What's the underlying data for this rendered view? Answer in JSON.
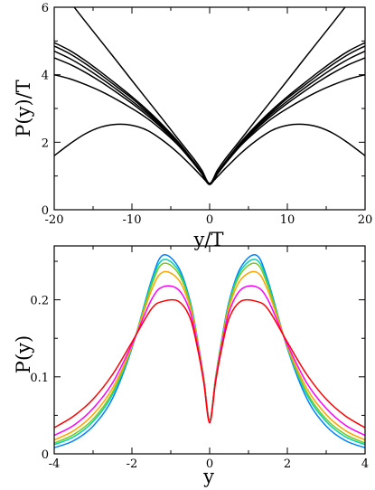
{
  "chart_data": [
    {
      "type": "line",
      "xlabel": "y/T",
      "ylabel": "P(y)/T",
      "xlim": [
        -20,
        20
      ],
      "ylim": [
        0,
        6
      ],
      "xticks": [
        -20,
        -10,
        0,
        10,
        20
      ],
      "xtick_labels": [
        "-20",
        "-10",
        "0",
        "10",
        "20"
      ],
      "yticks": [
        0,
        2,
        4,
        6
      ],
      "ytick_labels": [
        "0",
        "2",
        "4",
        "6"
      ],
      "grid": false,
      "legend": "none",
      "series": [
        {
          "color": "#000000",
          "x": [
            -20,
            -18,
            -16,
            -14,
            -12,
            -10,
            -8,
            -6,
            -4,
            -2,
            -1,
            0,
            1,
            2,
            4,
            6,
            8,
            10,
            12,
            14,
            16,
            18,
            20
          ],
          "values": [
            6.75,
            6.17,
            5.58,
            5.0,
            4.42,
            3.83,
            3.25,
            2.67,
            2.08,
            1.5,
            1.17,
            0.78,
            1.17,
            1.5,
            2.08,
            2.67,
            3.25,
            3.83,
            4.42,
            5.0,
            5.58,
            6.17,
            6.75
          ]
        },
        {
          "color": "#000000",
          "x": [
            -20,
            -18,
            -16,
            -14,
            -12,
            -10,
            -8,
            -6,
            -4,
            -2,
            -1,
            0,
            1,
            2,
            4,
            6,
            8,
            10,
            12,
            14,
            16,
            18,
            20
          ],
          "values": [
            4.95,
            4.72,
            4.42,
            4.08,
            3.72,
            3.35,
            2.95,
            2.5,
            2.0,
            1.42,
            1.1,
            0.76,
            1.1,
            1.42,
            2.0,
            2.5,
            2.95,
            3.35,
            3.72,
            4.08,
            4.42,
            4.72,
            4.95
          ]
        },
        {
          "color": "#000000",
          "x": [
            -20,
            -18,
            -16,
            -14,
            -12,
            -10,
            -8,
            -6,
            -4,
            -2,
            -1,
            0,
            1,
            2,
            4,
            6,
            8,
            10,
            12,
            14,
            16,
            18,
            20
          ],
          "values": [
            4.85,
            4.62,
            4.33,
            4.0,
            3.65,
            3.3,
            2.9,
            2.47,
            1.98,
            1.4,
            1.09,
            0.76,
            1.09,
            1.4,
            1.98,
            2.47,
            2.9,
            3.3,
            3.65,
            4.0,
            4.33,
            4.62,
            4.85
          ]
        },
        {
          "color": "#000000",
          "x": [
            -20,
            -18,
            -16,
            -14,
            -12,
            -10,
            -8,
            -6,
            -4,
            -2,
            -1,
            0,
            1,
            2,
            4,
            6,
            8,
            10,
            12,
            14,
            16,
            18,
            20
          ],
          "values": [
            4.7,
            4.48,
            4.21,
            3.9,
            3.57,
            3.22,
            2.85,
            2.43,
            1.96,
            1.39,
            1.08,
            0.75,
            1.08,
            1.39,
            1.96,
            2.43,
            2.85,
            3.22,
            3.57,
            3.9,
            4.21,
            4.48,
            4.7
          ]
        },
        {
          "color": "#000000",
          "x": [
            -20,
            -18,
            -16,
            -14,
            -12,
            -10,
            -8,
            -6,
            -4,
            -2,
            -1,
            0,
            1,
            2,
            4,
            6,
            8,
            10,
            12,
            14,
            16,
            18,
            20
          ],
          "values": [
            4.5,
            4.31,
            4.07,
            3.79,
            3.48,
            3.15,
            2.79,
            2.39,
            1.93,
            1.37,
            1.07,
            0.75,
            1.07,
            1.37,
            1.93,
            2.39,
            2.79,
            3.15,
            3.48,
            3.79,
            4.07,
            4.31,
            4.5
          ]
        },
        {
          "color": "#000000",
          "x": [
            -20,
            -18,
            -16,
            -14,
            -12,
            -10,
            -8,
            -6,
            -4,
            -2,
            -1,
            0,
            1,
            2,
            4,
            6,
            8,
            10,
            12,
            14,
            16,
            18,
            20
          ],
          "values": [
            4.0,
            3.88,
            3.71,
            3.51,
            3.27,
            3.0,
            2.7,
            2.33,
            1.9,
            1.36,
            1.06,
            0.75,
            1.06,
            1.36,
            1.9,
            2.33,
            2.7,
            3.0,
            3.27,
            3.51,
            3.71,
            3.88,
            4.0
          ]
        },
        {
          "color": "#000000",
          "x": [
            -20,
            -18,
            -16,
            -14,
            -12,
            -10,
            -8,
            -6,
            -4,
            -2,
            -1,
            0,
            1,
            2,
            4,
            6,
            8,
            10,
            12,
            14,
            16,
            18,
            20
          ],
          "values": [
            1.6,
            1.95,
            2.25,
            2.45,
            2.53,
            2.5,
            2.35,
            2.05,
            1.67,
            1.22,
            0.98,
            0.78,
            0.98,
            1.22,
            1.67,
            2.05,
            2.35,
            2.5,
            2.53,
            2.45,
            2.25,
            1.95,
            1.6
          ]
        }
      ]
    },
    {
      "type": "line",
      "xlabel": "y",
      "ylabel": "P(y)",
      "xlim": [
        -4,
        4
      ],
      "ylim": [
        0,
        0.27
      ],
      "xticks": [
        -4,
        -2,
        0,
        2,
        4
      ],
      "xtick_labels": [
        "-4",
        "-2",
        "0",
        "2",
        "4"
      ],
      "yticks": [
        0,
        0.1,
        0.2
      ],
      "ytick_labels": [
        "0",
        "0.1",
        "0.2"
      ],
      "grid": false,
      "legend": "none",
      "series": [
        {
          "color": "#0080ff",
          "x": [
            -4,
            -3.5,
            -3,
            -2.5,
            -2,
            -1.5,
            -1.2,
            -0.8,
            -0.5,
            -0.3,
            -0.15,
            0,
            0.15,
            0.3,
            0.5,
            0.8,
            1.2,
            1.5,
            2,
            2.5,
            3,
            3.5,
            4
          ],
          "values": [
            0.008,
            0.017,
            0.036,
            0.072,
            0.137,
            0.225,
            0.258,
            0.242,
            0.198,
            0.145,
            0.098,
            0.044,
            0.098,
            0.145,
            0.198,
            0.242,
            0.258,
            0.225,
            0.137,
            0.072,
            0.036,
            0.017,
            0.008
          ]
        },
        {
          "color": "#00d4b0",
          "x": [
            -4,
            -3.5,
            -3,
            -2.5,
            -2,
            -1.5,
            -1.2,
            -0.8,
            -0.5,
            -0.3,
            -0.15,
            0,
            0.15,
            0.3,
            0.5,
            0.8,
            1.2,
            1.5,
            2,
            2.5,
            3,
            3.5,
            4
          ],
          "values": [
            0.012,
            0.022,
            0.042,
            0.077,
            0.138,
            0.222,
            0.252,
            0.238,
            0.196,
            0.144,
            0.098,
            0.044,
            0.098,
            0.144,
            0.196,
            0.238,
            0.252,
            0.222,
            0.138,
            0.077,
            0.042,
            0.022,
            0.012
          ]
        },
        {
          "color": "#7ac81e",
          "x": [
            -4,
            -3.5,
            -3,
            -2.5,
            -2,
            -1.5,
            -1.2,
            -0.8,
            -0.5,
            -0.3,
            -0.15,
            0,
            0.15,
            0.3,
            0.5,
            0.8,
            1.2,
            1.5,
            2,
            2.5,
            3,
            3.5,
            4
          ],
          "values": [
            0.014,
            0.025,
            0.045,
            0.08,
            0.139,
            0.218,
            0.247,
            0.234,
            0.194,
            0.143,
            0.097,
            0.043,
            0.097,
            0.143,
            0.194,
            0.234,
            0.247,
            0.218,
            0.139,
            0.08,
            0.045,
            0.025,
            0.014
          ]
        },
        {
          "color": "#ffa500",
          "x": [
            -4,
            -3.5,
            -3,
            -2.5,
            -2,
            -1.5,
            -1.2,
            -0.8,
            -0.5,
            -0.3,
            -0.15,
            0,
            0.15,
            0.3,
            0.5,
            0.8,
            1.2,
            1.5,
            2,
            2.5,
            3,
            3.5,
            4
          ],
          "values": [
            0.018,
            0.03,
            0.051,
            0.085,
            0.14,
            0.212,
            0.236,
            0.226,
            0.19,
            0.141,
            0.096,
            0.042,
            0.096,
            0.141,
            0.19,
            0.226,
            0.236,
            0.212,
            0.14,
            0.085,
            0.051,
            0.03,
            0.018
          ]
        },
        {
          "color": "#ff00ff",
          "x": [
            -4,
            -3.5,
            -3,
            -2.5,
            -2,
            -1.5,
            -1.2,
            -0.8,
            -0.5,
            -0.3,
            -0.15,
            0,
            0.15,
            0.3,
            0.5,
            0.8,
            1.2,
            1.5,
            2,
            2.5,
            3,
            3.5,
            4
          ],
          "values": [
            0.024,
            0.037,
            0.059,
            0.092,
            0.142,
            0.2,
            0.217,
            0.213,
            0.184,
            0.138,
            0.094,
            0.041,
            0.094,
            0.138,
            0.184,
            0.213,
            0.217,
            0.2,
            0.142,
            0.092,
            0.059,
            0.037,
            0.024
          ]
        },
        {
          "color": "#ff0000",
          "x": [
            -4,
            -3.5,
            -3,
            -2.5,
            -2,
            -1.5,
            -1.2,
            -0.8,
            -0.5,
            -0.3,
            -0.15,
            0,
            0.15,
            0.3,
            0.5,
            0.8,
            1.2,
            1.5,
            2,
            2.5,
            3,
            3.5,
            4
          ],
          "values": [
            0.034,
            0.049,
            0.071,
            0.103,
            0.145,
            0.188,
            0.198,
            0.198,
            0.176,
            0.134,
            0.092,
            0.04,
            0.092,
            0.134,
            0.176,
            0.198,
            0.198,
            0.188,
            0.145,
            0.103,
            0.071,
            0.049,
            0.034
          ]
        }
      ]
    }
  ]
}
